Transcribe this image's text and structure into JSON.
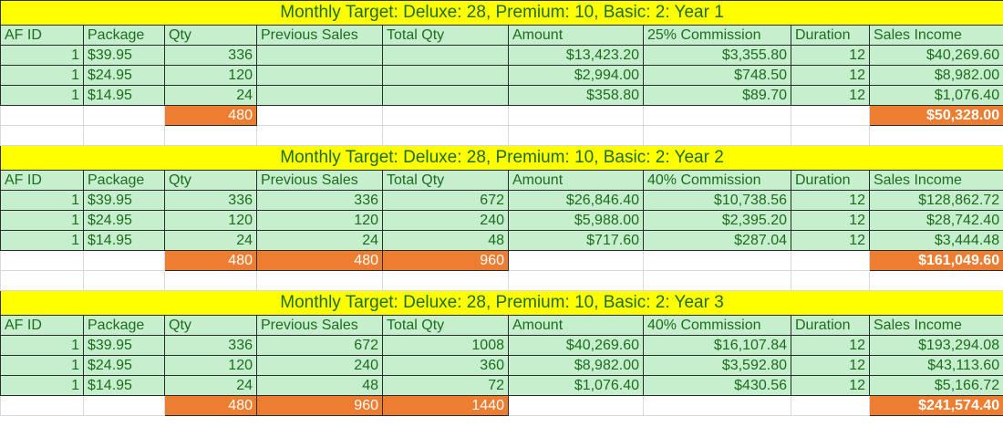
{
  "colors": {
    "title_bg": "#ffff00",
    "cell_bg": "#c6efce",
    "text": "#1f6b1f",
    "total_bg": "#ed7d31"
  },
  "blocks": [
    {
      "title": "Monthly Target: Deluxe: 28, Premium: 10, Basic: 2: Year 1",
      "headers": [
        "AF ID",
        "Package",
        "Qty",
        "Previous Sales",
        "Total Qty",
        "Amount",
        "25% Commission",
        "Duration",
        "Sales Income"
      ],
      "rows": [
        [
          "1",
          "$39.95",
          "336",
          "",
          "",
          "$13,423.20",
          "$3,355.80",
          "12",
          "$40,269.60"
        ],
        [
          "1",
          "$24.95",
          "120",
          "",
          "",
          "$2,994.00",
          "$748.50",
          "12",
          "$8,982.00"
        ],
        [
          "1",
          "$14.95",
          "24",
          "",
          "",
          "$358.80",
          "$89.70",
          "12",
          "$1,076.40"
        ]
      ],
      "totals": {
        "qty": "480",
        "previous_sales": "",
        "total_qty": "",
        "sales_income": "$50,328.00"
      }
    },
    {
      "title": "Monthly Target: Deluxe: 28, Premium: 10, Basic: 2: Year 2",
      "headers": [
        "AF ID",
        "Package",
        "Qty",
        "Previous Sales",
        "Total Qty",
        "Amount",
        "40% Commission",
        "Duration",
        "Sales Income"
      ],
      "rows": [
        [
          "1",
          "$39.95",
          "336",
          "336",
          "672",
          "$26,846.40",
          "$10,738.56",
          "12",
          "$128,862.72"
        ],
        [
          "1",
          "$24.95",
          "120",
          "120",
          "240",
          "$5,988.00",
          "$2,395.20",
          "12",
          "$28,742.40"
        ],
        [
          "1",
          "$14.95",
          "24",
          "24",
          "48",
          "$717.60",
          "$287.04",
          "12",
          "$3,444.48"
        ]
      ],
      "totals": {
        "qty": "480",
        "previous_sales": "480",
        "total_qty": "960",
        "sales_income": "$161,049.60"
      }
    },
    {
      "title": "Monthly Target: Deluxe: 28, Premium: 10, Basic: 2: Year 3",
      "headers": [
        "AF ID",
        "Package",
        "Qty",
        "Previous Sales",
        "Total Qty",
        "Amount",
        "40% Commission",
        "Duration",
        "Sales Income"
      ],
      "rows": [
        [
          "1",
          "$39.95",
          "336",
          "672",
          "1008",
          "$40,269.60",
          "$16,107.84",
          "12",
          "$193,294.08"
        ],
        [
          "1",
          "$24.95",
          "120",
          "240",
          "360",
          "$8,982.00",
          "$3,592.80",
          "12",
          "$43,113.60"
        ],
        [
          "1",
          "$14.95",
          "24",
          "48",
          "72",
          "$1,076.40",
          "$430.56",
          "12",
          "$5,166.72"
        ]
      ],
      "totals": {
        "qty": "480",
        "previous_sales": "960",
        "total_qty": "1440",
        "sales_income": "$241,574.40"
      }
    }
  ]
}
